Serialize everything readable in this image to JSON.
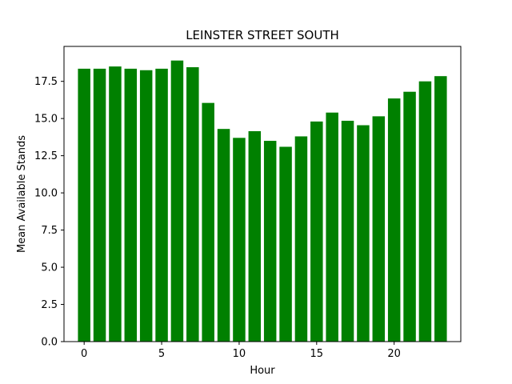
{
  "chart_data": {
    "type": "bar",
    "title": "LEINSTER STREET SOUTH",
    "xlabel": "Hour",
    "ylabel": "Mean Available Stands",
    "bar_color": "#008000",
    "categories": [
      0,
      1,
      2,
      3,
      4,
      5,
      6,
      7,
      8,
      9,
      10,
      11,
      12,
      13,
      14,
      15,
      16,
      17,
      18,
      19,
      20,
      21,
      22,
      23
    ],
    "values": [
      18.35,
      18.35,
      18.5,
      18.35,
      18.25,
      18.35,
      18.9,
      18.45,
      16.05,
      14.3,
      13.7,
      14.15,
      13.5,
      13.1,
      13.8,
      14.8,
      15.4,
      14.85,
      14.55,
      15.15,
      16.35,
      16.8,
      17.5,
      17.85
    ],
    "xlim": [
      -1.3,
      24.3
    ],
    "ylim": [
      0,
      19.85
    ],
    "xticks": [
      0,
      5,
      10,
      15,
      20
    ],
    "xtick_labels": [
      "0",
      "5",
      "10",
      "15",
      "20"
    ],
    "yticks": [
      0,
      2.5,
      5,
      7.5,
      10,
      12.5,
      15,
      17.5
    ],
    "ytick_labels": [
      "0.0",
      "2.5",
      "5.0",
      "7.5",
      "10.0",
      "12.5",
      "15.0",
      "17.5"
    ],
    "grid": false,
    "legend": "none"
  }
}
